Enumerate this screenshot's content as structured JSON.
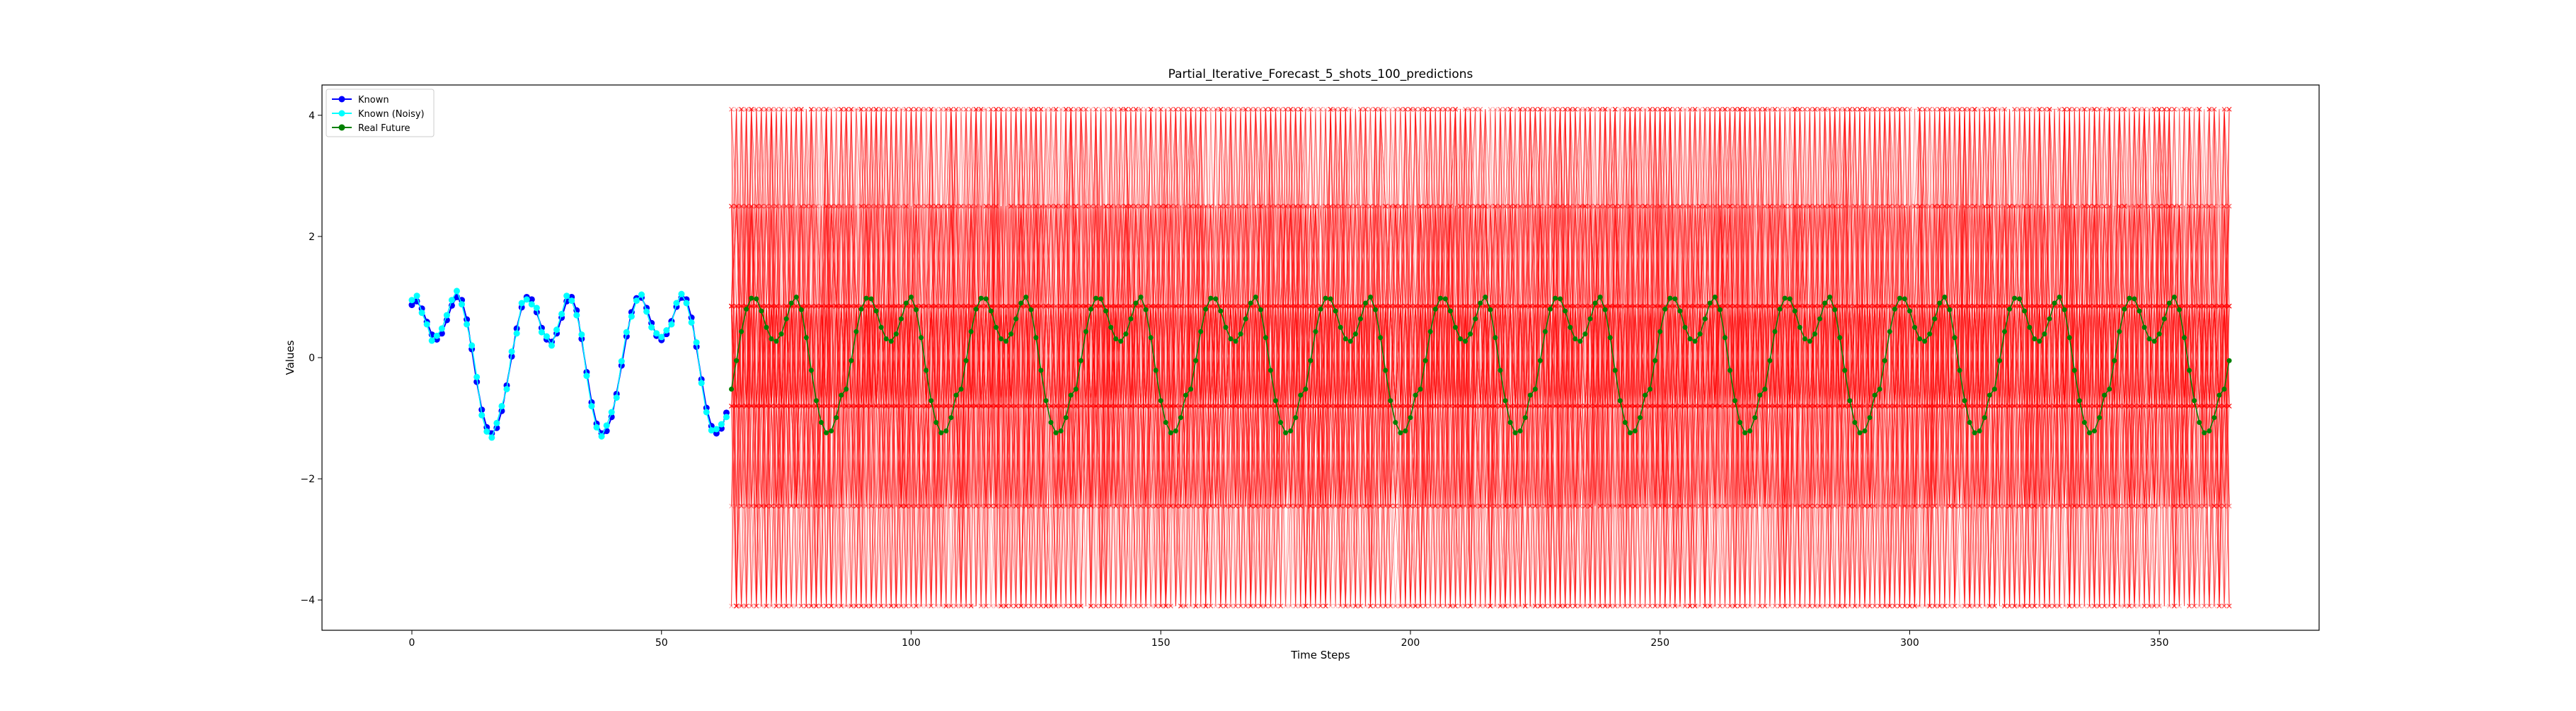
{
  "chart_data": {
    "type": "line",
    "title": "Partial_Iterative_Forecast_5_shots_100_predictions",
    "xlabel": "Time Steps",
    "ylabel": "Values",
    "xlim": [
      -18,
      382
    ],
    "ylim": [
      -4.5,
      4.5
    ],
    "xticks": [
      0,
      50,
      100,
      150,
      200,
      250,
      300,
      350
    ],
    "xtick_labels": [
      "0",
      "50",
      "100",
      "150",
      "200",
      "250",
      "300",
      "350"
    ],
    "yticks": [
      -4,
      -2,
      0,
      2,
      4
    ],
    "ytick_labels": [
      "−4",
      "−2",
      "0",
      "2",
      "4"
    ],
    "grid": false,
    "legend_position": "upper-left",
    "colors": {
      "known": "#0000ff",
      "known_noisy": "#00ffff",
      "real_future": "#008000",
      "predictions": "#ff0000"
    },
    "series": [
      {
        "name": "Known",
        "marker": "circle",
        "x": [
          0,
          1,
          2,
          3,
          4,
          5,
          6,
          7,
          8,
          9,
          10,
          11,
          12,
          13,
          14,
          15,
          16,
          17,
          18,
          19,
          20,
          21,
          22,
          23,
          24,
          25,
          26,
          27,
          28,
          29,
          30,
          31,
          32,
          33,
          34,
          35,
          36,
          37,
          38,
          39,
          40,
          41,
          42,
          43,
          44,
          45,
          46,
          47,
          48,
          49,
          50,
          51,
          52,
          53,
          54,
          55,
          56,
          57,
          58,
          59,
          60,
          61,
          62,
          63
        ],
        "y": [
          0.87,
          0.93,
          0.81,
          0.59,
          0.38,
          0.3,
          0.4,
          0.62,
          0.86,
          1.0,
          0.95,
          0.63,
          0.14,
          -0.4,
          -0.86,
          -1.15,
          -1.25,
          -1.16,
          -0.88,
          -0.46,
          0.02,
          0.48,
          0.83,
          1.0,
          0.96,
          0.75,
          0.49,
          0.3,
          0.26,
          0.4,
          0.66,
          0.93,
          1.0,
          0.78,
          0.31,
          -0.24,
          -0.74,
          -1.09,
          -1.25,
          -1.21,
          -0.98,
          -0.6,
          -0.13,
          0.35,
          0.75,
          0.98,
          0.99,
          0.82,
          0.57,
          0.36,
          0.29,
          0.39,
          0.6,
          0.84,
          0.99,
          0.96,
          0.66,
          0.18,
          -0.36,
          -0.83,
          -1.13,
          -1.25,
          -1.17,
          -0.91
        ]
      },
      {
        "name": "Known (Noisy)",
        "marker": "circle",
        "x": [
          0,
          1,
          2,
          3,
          4,
          5,
          6,
          7,
          8,
          9,
          10,
          11,
          12,
          13,
          14,
          15,
          16,
          17,
          18,
          19,
          20,
          21,
          22,
          23,
          24,
          25,
          26,
          27,
          28,
          29,
          30,
          31,
          32,
          33,
          34,
          35,
          36,
          37,
          38,
          39,
          40,
          41,
          42,
          43,
          44,
          45,
          46,
          47,
          48,
          49,
          50,
          51,
          52,
          53,
          54,
          55,
          56,
          57,
          58,
          59,
          60,
          61,
          62,
          63
        ],
        "y": [
          0.95,
          1.02,
          0.74,
          0.55,
          0.28,
          0.36,
          0.48,
          0.7,
          0.95,
          1.1,
          0.88,
          0.55,
          0.2,
          -0.32,
          -0.95,
          -1.22,
          -1.32,
          -1.08,
          -0.8,
          -0.52,
          0.1,
          0.4,
          0.9,
          0.96,
          0.88,
          0.82,
          0.42,
          0.35,
          0.2,
          0.46,
          0.72,
          1.02,
          0.94,
          0.7,
          0.38,
          -0.3,
          -0.8,
          -1.15,
          -1.3,
          -1.12,
          -0.9,
          -0.66,
          -0.06,
          0.42,
          0.68,
          0.94,
          1.04,
          0.76,
          0.5,
          0.4,
          0.34,
          0.45,
          0.55,
          0.9,
          1.05,
          0.9,
          0.58,
          0.25,
          -0.42,
          -0.9,
          -1.2,
          -1.18,
          -1.1,
          -0.98
        ]
      },
      {
        "name": "Real Future",
        "marker": "circle",
        "x_start": 64,
        "x_end": 364,
        "pattern": [
          -0.52,
          -0.05,
          0.43,
          0.8,
          0.98,
          0.97,
          0.77,
          0.5,
          0.31,
          0.27,
          0.39,
          0.64,
          0.9,
          1.0,
          0.79,
          0.33,
          -0.21,
          -0.71,
          -1.07,
          -1.24,
          -1.21,
          -0.99,
          -0.62
        ]
      }
    ],
    "predictions": {
      "label": "100 predictions",
      "count": 100,
      "x_start": 64,
      "x_end": 364,
      "marker": "x",
      "levels": [
        -4.1,
        -2.45,
        -0.8,
        0.85,
        2.5,
        4.1
      ]
    }
  }
}
